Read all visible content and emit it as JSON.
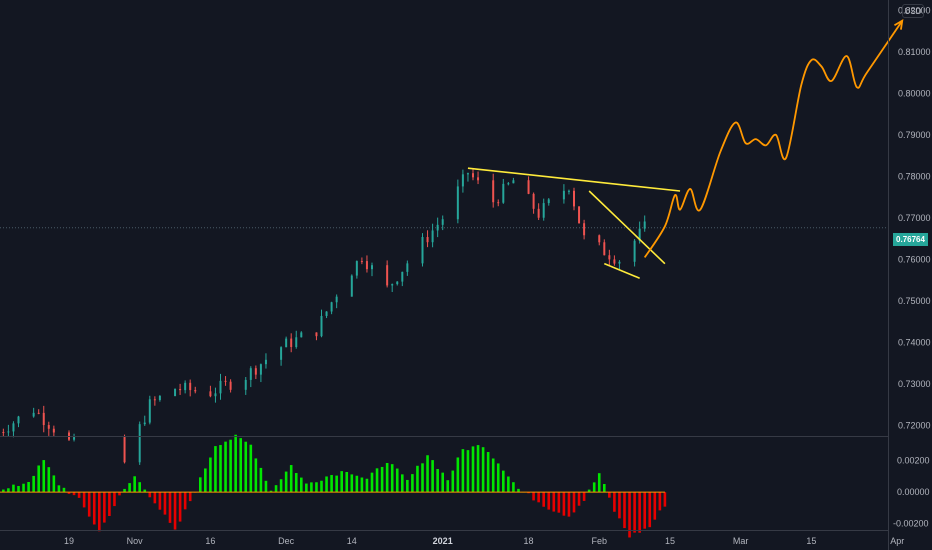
{
  "currency_label": "USD",
  "last_price_label": "0.76764",
  "chart_data": [
    {
      "type": "candlestick",
      "instrument_quote": "USD",
      "last_price": 0.76764,
      "ylim": [
        0.7175,
        0.8225
      ],
      "y_ticks": [
        "0.82000",
        "0.81000",
        "0.80000",
        "0.79000",
        "0.78000",
        "0.77000",
        "0.76000",
        "0.75000",
        "0.74000",
        "0.73000",
        "0.72000"
      ],
      "x_tick_labels": [
        "19",
        "Nov",
        "16",
        "Dec",
        "14",
        "2021",
        "18",
        "Feb",
        "15",
        "Mar",
        "15",
        "Apr"
      ],
      "x_tick_bold": [
        "2021"
      ],
      "grid": false,
      "price_path_keypoints": [
        {
          "date": "2020-10-05",
          "close": 0.7185
        },
        {
          "date": "2020-10-12",
          "close": 0.724
        },
        {
          "date": "2020-10-19",
          "close": 0.716
        },
        {
          "date": "2020-10-30",
          "close": 0.711
        },
        {
          "date": "2020-11-04",
          "close": 0.725
        },
        {
          "date": "2020-11-09",
          "close": 0.729
        },
        {
          "date": "2020-11-16",
          "close": 0.728
        },
        {
          "date": "2020-11-23",
          "close": 0.732
        },
        {
          "date": "2020-11-30",
          "close": 0.739
        },
        {
          "date": "2020-12-07",
          "close": 0.743
        },
        {
          "date": "2020-12-11",
          "close": 0.752
        },
        {
          "date": "2020-12-16",
          "close": 0.761
        },
        {
          "date": "2020-12-21",
          "close": 0.753
        },
        {
          "date": "2020-12-28",
          "close": 0.764
        },
        {
          "date": "2021-01-01",
          "close": 0.77
        },
        {
          "date": "2021-01-06",
          "close": 0.781
        },
        {
          "date": "2021-01-11",
          "close": 0.774
        },
        {
          "date": "2021-01-15",
          "close": 0.779
        },
        {
          "date": "2021-01-20",
          "close": 0.771
        },
        {
          "date": "2021-01-26",
          "close": 0.778
        },
        {
          "date": "2021-01-29",
          "close": 0.765
        },
        {
          "date": "2021-02-02",
          "close": 0.762
        },
        {
          "date": "2021-02-05",
          "close": 0.76
        },
        {
          "date": "2021-02-10",
          "close": 0.7676
        }
      ],
      "drawings": [
        {
          "type": "trendline",
          "color": "#ffeb3b",
          "points": [
            {
              "date": "2021-01-06",
              "price": 0.782
            },
            {
              "date": "2021-02-17",
              "price": 0.7765
            }
          ]
        },
        {
          "type": "trendline",
          "color": "#ffeb3b",
          "points": [
            {
              "date": "2021-01-30",
              "price": 0.7765
            },
            {
              "date": "2021-02-14",
              "price": 0.759
            }
          ]
        },
        {
          "type": "trendline",
          "color": "#ffeb3b",
          "points": [
            {
              "date": "2021-02-02",
              "price": 0.759
            },
            {
              "date": "2021-02-09",
              "price": 0.7555
            }
          ]
        },
        {
          "type": "projection_arrow",
          "color": "#ff9800",
          "points": [
            {
              "date": "2021-02-10",
              "price": 0.7605
            },
            {
              "date": "2021-02-14",
              "price": 0.768
            },
            {
              "date": "2021-02-16",
              "price": 0.7755
            },
            {
              "date": "2021-02-17",
              "price": 0.772
            },
            {
              "date": "2021-02-19",
              "price": 0.777
            },
            {
              "date": "2021-02-21",
              "price": 0.772
            },
            {
              "date": "2021-02-25",
              "price": 0.786
            },
            {
              "date": "2021-02-28",
              "price": 0.793
            },
            {
              "date": "2021-03-02",
              "price": 0.788
            },
            {
              "date": "2021-03-04",
              "price": 0.789
            },
            {
              "date": "2021-03-06",
              "price": 0.7875
            },
            {
              "date": "2021-03-08",
              "price": 0.79
            },
            {
              "date": "2021-03-10",
              "price": 0.7845
            },
            {
              "date": "2021-03-13",
              "price": 0.802
            },
            {
              "date": "2021-03-15",
              "price": 0.808
            },
            {
              "date": "2021-03-17",
              "price": 0.8065
            },
            {
              "date": "2021-03-19",
              "price": 0.803
            },
            {
              "date": "2021-03-22",
              "price": 0.809
            },
            {
              "date": "2021-03-24",
              "price": 0.8015
            },
            {
              "date": "2021-03-26",
              "price": 0.805
            },
            {
              "date": "2021-04-02",
              "price": 0.8175
            }
          ]
        }
      ]
    },
    {
      "type": "histogram",
      "ylim": [
        -0.0024,
        0.0035
      ],
      "y_ticks": [
        "0.00200",
        "0.00000",
        "-0.00200"
      ],
      "positive_color": "#00e600",
      "negative_color": "#e60000",
      "keypoints": [
        {
          "date": "2020-10-03",
          "value": 0.0009
        },
        {
          "date": "2020-10-06",
          "value": 0.0001
        },
        {
          "date": "2020-10-11",
          "value": 0.0007
        },
        {
          "date": "2020-10-14",
          "value": 0.002
        },
        {
          "date": "2020-10-17",
          "value": 0.0005
        },
        {
          "date": "2020-10-21",
          "value": -0.0005
        },
        {
          "date": "2020-10-25",
          "value": -0.0025
        },
        {
          "date": "2020-10-29",
          "value": -0.0003
        },
        {
          "date": "2020-11-01",
          "value": 0.001
        },
        {
          "date": "2020-11-05",
          "value": -0.0006
        },
        {
          "date": "2020-11-09",
          "value": -0.0025
        },
        {
          "date": "2020-11-13",
          "value": 0.0001
        },
        {
          "date": "2020-11-17",
          "value": 0.003
        },
        {
          "date": "2020-11-21",
          "value": 0.0035
        },
        {
          "date": "2020-11-24",
          "value": 0.003
        },
        {
          "date": "2020-11-28",
          "value": 0.0001
        },
        {
          "date": "2020-12-02",
          "value": 0.0017
        },
        {
          "date": "2020-12-05",
          "value": 0.0005
        },
        {
          "date": "2020-12-09",
          "value": 0.001
        },
        {
          "date": "2020-12-13",
          "value": 0.0014
        },
        {
          "date": "2020-12-17",
          "value": 0.0008
        },
        {
          "date": "2020-12-21",
          "value": 0.002
        },
        {
          "date": "2020-12-25",
          "value": 0.0007
        },
        {
          "date": "2020-12-29",
          "value": 0.0024
        },
        {
          "date": "2021-01-02",
          "value": 0.0008
        },
        {
          "date": "2021-01-05",
          "value": 0.0027
        },
        {
          "date": "2021-01-09",
          "value": 0.003
        },
        {
          "date": "2021-01-13",
          "value": 0.0015
        },
        {
          "date": "2021-01-16",
          "value": 0.0002
        },
        {
          "date": "2021-01-19",
          "value": -0.0004
        },
        {
          "date": "2021-01-22",
          "value": -0.001
        },
        {
          "date": "2021-01-26",
          "value": -0.0015
        },
        {
          "date": "2021-01-29",
          "value": -0.0005
        },
        {
          "date": "2021-02-01",
          "value": 0.0012
        },
        {
          "date": "2021-02-04",
          "value": -0.0012
        },
        {
          "date": "2021-02-07",
          "value": -0.0028
        },
        {
          "date": "2021-02-11",
          "value": -0.0022
        },
        {
          "date": "2021-02-14",
          "value": -0.0008
        }
      ]
    }
  ]
}
